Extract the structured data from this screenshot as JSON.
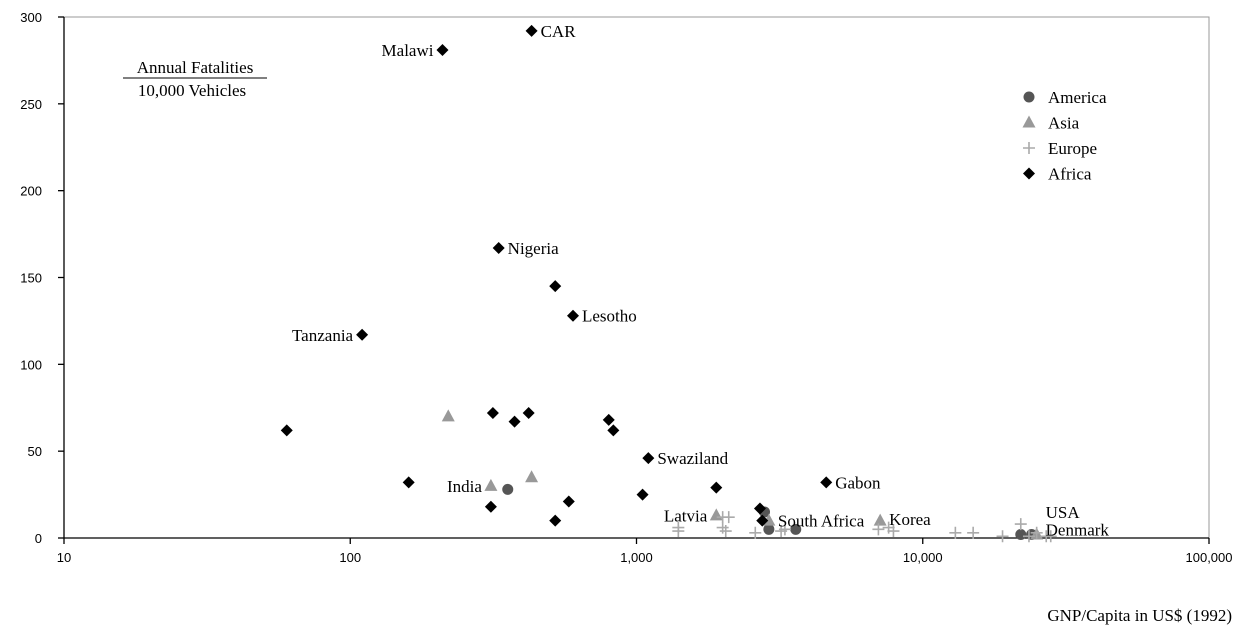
{
  "chart_data": {
    "type": "scatter",
    "title": "",
    "ylabel": "",
    "xlabel": "GNP/Capita in US$ (1992)",
    "x_scale": "log",
    "xlim": [
      10,
      100000
    ],
    "ylim": [
      0,
      300
    ],
    "x_ticks": [
      10,
      100,
      1000,
      10000,
      100000
    ],
    "x_tick_labels": [
      "10",
      "100",
      "1,000",
      "10,000",
      "100,000"
    ],
    "y_ticks": [
      0,
      50,
      100,
      150,
      200,
      250,
      300
    ],
    "y_tick_labels": [
      "0",
      "50",
      "100",
      "150",
      "200",
      "250",
      "300"
    ],
    "y_title_lines": [
      "Annual Fatalities",
      "10,000 Vehicles"
    ],
    "legend_position": "top-right",
    "grid": false,
    "series": [
      {
        "name": "America",
        "marker": "circle",
        "color": "#555555",
        "points": [
          [
            355,
            28
          ],
          [
            2800,
            15
          ],
          [
            2900,
            5
          ],
          [
            3600,
            5
          ],
          [
            22000,
            2
          ],
          [
            24000,
            2
          ]
        ]
      },
      {
        "name": "Asia",
        "marker": "triangle",
        "color": "#999999",
        "points": [
          [
            220,
            70
          ],
          [
            310,
            30
          ],
          [
            430,
            35
          ],
          [
            1900,
            13
          ],
          [
            2900,
            10
          ],
          [
            7100,
            10
          ],
          [
            25000,
            2
          ]
        ]
      },
      {
        "name": "Europe",
        "marker": "plus",
        "color": "#aaaaaa",
        "points": [
          [
            1400,
            6
          ],
          [
            1400,
            4
          ],
          [
            2000,
            12
          ],
          [
            2100,
            12
          ],
          [
            2000,
            6
          ],
          [
            2050,
            4
          ],
          [
            2600,
            3
          ],
          [
            3200,
            4
          ],
          [
            3300,
            5
          ],
          [
            7000,
            5
          ],
          [
            7600,
            6
          ],
          [
            7900,
            4
          ],
          [
            13000,
            3
          ],
          [
            15000,
            3
          ],
          [
            19000,
            1
          ],
          [
            22000,
            8
          ],
          [
            23500,
            1
          ],
          [
            25000,
            3
          ],
          [
            27000,
            1
          ],
          [
            28000,
            1
          ]
        ]
      },
      {
        "name": "Africa",
        "marker": "diamond",
        "color": "#000000",
        "points": [
          [
            430,
            292
          ],
          [
            210,
            281
          ],
          [
            330,
            167
          ],
          [
            520,
            145
          ],
          [
            600,
            128
          ],
          [
            110,
            117
          ],
          [
            60,
            62
          ],
          [
            160,
            32
          ],
          [
            315,
            72
          ],
          [
            375,
            67
          ],
          [
            420,
            72
          ],
          [
            800,
            68
          ],
          [
            830,
            62
          ],
          [
            1100,
            46
          ],
          [
            1050,
            25
          ],
          [
            310,
            18
          ],
          [
            520,
            10
          ],
          [
            580,
            21
          ],
          [
            1900,
            29
          ],
          [
            2700,
            17
          ],
          [
            2750,
            10
          ],
          [
            4600,
            32
          ]
        ]
      }
    ],
    "annotations": [
      {
        "text": "CAR",
        "x": 430,
        "y": 292,
        "side": "right"
      },
      {
        "text": "Malawi",
        "x": 210,
        "y": 281,
        "side": "left"
      },
      {
        "text": "Nigeria",
        "x": 330,
        "y": 167,
        "side": "right"
      },
      {
        "text": "Lesotho",
        "x": 600,
        "y": 128,
        "side": "right"
      },
      {
        "text": "Tanzania",
        "x": 110,
        "y": 117,
        "side": "left"
      },
      {
        "text": "Swaziland",
        "x": 1100,
        "y": 46,
        "side": "right"
      },
      {
        "text": "India",
        "x": 310,
        "y": 30,
        "side": "left"
      },
      {
        "text": "Gabon",
        "x": 4600,
        "y": 32,
        "side": "right"
      },
      {
        "text": "Latvia",
        "x": 1900,
        "y": 13,
        "side": "left"
      },
      {
        "text": "South Africa",
        "x": 2900,
        "y": 10,
        "side": "right"
      },
      {
        "text": "Korea",
        "x": 7100,
        "y": 11,
        "side": "right"
      },
      {
        "text": "USA",
        "x": 25000,
        "y": 15,
        "side": "right"
      },
      {
        "text": "Denmark",
        "x": 25000,
        "y": 5,
        "side": "right"
      }
    ]
  }
}
